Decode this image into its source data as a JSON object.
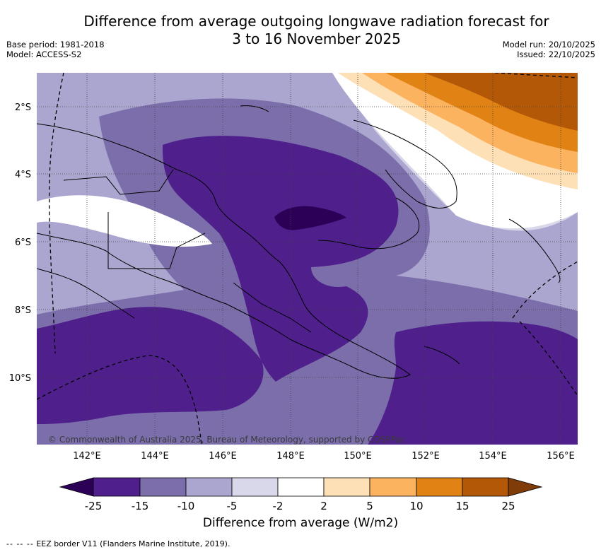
{
  "header": {
    "title_line1": "Difference from average outgoing longwave radiation forecast for",
    "title_line2": "3 to 16 November 2025",
    "base_period": "Base period: 1981-2018",
    "model": "Model: ACCESS-S2",
    "model_run": "Model run: 20/10/2025",
    "issued": "Issued: 22/10/2025"
  },
  "map": {
    "lat_labels": [
      "2°S",
      "4°S",
      "6°S",
      "8°S",
      "10°S"
    ],
    "lon_labels": [
      "142°E",
      "144°E",
      "146°E",
      "148°E",
      "150°E",
      "152°E",
      "154°E",
      "156°E"
    ],
    "lon_range": [
      140.5,
      156.5
    ],
    "lat_range": [
      -12,
      -1
    ],
    "copyright": "© Commonwealth of Australia 2025, Bureau of Meteorology, supported by COSPPac"
  },
  "colorbar": {
    "ticks": [
      "-25",
      "-15",
      "-10",
      "-5",
      "-2",
      "2",
      "5",
      "10",
      "15",
      "25"
    ],
    "colors": [
      "#2d0057",
      "#4f1f8c",
      "#7c6eab",
      "#aba6cf",
      "#d8d8ea",
      "#ffffff",
      "#fde0b6",
      "#fbb35f",
      "#e08214",
      "#b35806",
      "#7f3b08"
    ],
    "label": "Difference from average (W/m2)"
  },
  "legend": {
    "dash_symbol": "-- -- --",
    "eez_text": "EEZ border V11 (Flanders Marine Institute, 2019)."
  }
}
